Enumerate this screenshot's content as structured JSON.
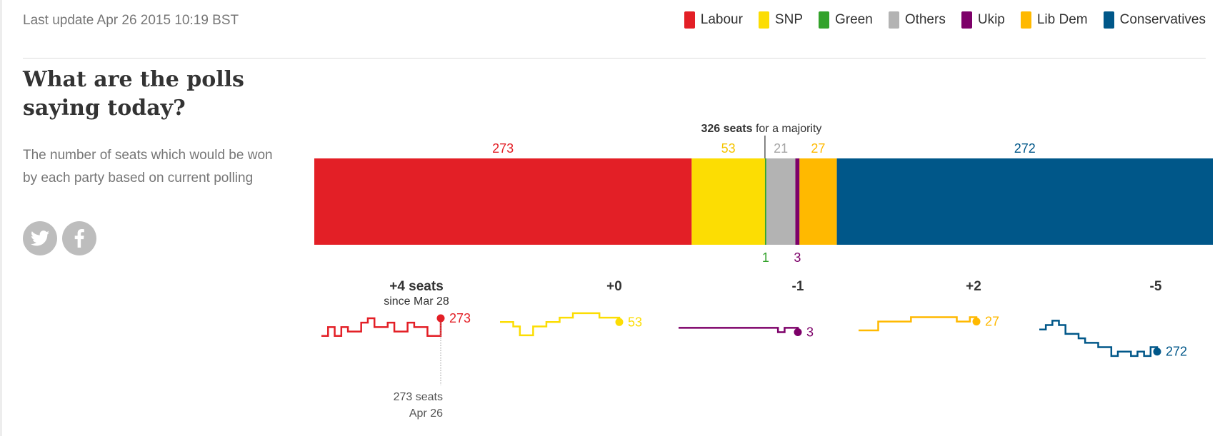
{
  "last_update": "Last update Apr 26 2015 10:19 BST",
  "headline": "What are the polls saying today?",
  "standfirst": "The number of seats which would be won by each party based on current polling",
  "share": {
    "twitter_icon": "twitter-icon",
    "facebook_icon": "facebook-icon"
  },
  "legend": [
    {
      "label": "Labour",
      "color": "#e31f26"
    },
    {
      "label": "SNP",
      "color": "#fcdd03"
    },
    {
      "label": "Green",
      "color": "#33a22b"
    },
    {
      "label": "Others",
      "color": "#b3b3b3"
    },
    {
      "label": "Ukip",
      "color": "#7d0069"
    },
    {
      "label": "Lib Dem",
      "color": "#ffb900"
    },
    {
      "label": "Conservatives",
      "color": "#005789"
    }
  ],
  "chart_data": [
    {
      "type": "bar",
      "stacked": true,
      "orientation": "horizontal",
      "total": 650,
      "majority": {
        "seats": 326,
        "bold_text": "326 seats",
        "text": "for a majority"
      },
      "segments": [
        {
          "party": "Labour",
          "seats": 273,
          "label": "273",
          "color": "#e31f26",
          "label_pos": "above"
        },
        {
          "party": "SNP",
          "seats": 53,
          "label": "53",
          "color": "#fcdd03",
          "label_pos": "above",
          "label_color": "#f5c400"
        },
        {
          "party": "Green",
          "seats": 1,
          "label": "1",
          "color": "#33a22b",
          "label_pos": "below"
        },
        {
          "party": "Others",
          "seats": 21,
          "label": "21",
          "color": "#b3b3b3",
          "label_pos": "above"
        },
        {
          "party": "Ukip",
          "seats": 3,
          "label": "3",
          "color": "#7d0069",
          "label_pos": "below"
        },
        {
          "party": "Lib Dem",
          "seats": 27,
          "label": "27",
          "color": "#ffb900",
          "label_pos": "above"
        },
        {
          "party": "Conservatives",
          "seats": 272,
          "label": "272",
          "color": "#005789",
          "label_pos": "above"
        }
      ]
    },
    {
      "type": "line",
      "description_style": "step sparklines",
      "x_range": [
        "Mar 28",
        "Apr 26"
      ],
      "annotation": {
        "since": "since Mar 28",
        "value_label": "273 seats",
        "date_label": "Apr 26"
      },
      "series": [
        {
          "name": "Labour",
          "change": "+4 seats",
          "final": 273,
          "final_label": "273",
          "color": "#e31f26",
          "values": [
            269,
            271,
            269,
            271,
            270,
            270,
            272,
            273,
            271,
            271,
            272,
            270,
            270,
            272,
            271,
            271,
            269,
            269,
            273
          ]
        },
        {
          "name": "SNP",
          "change": "+0",
          "final": 53,
          "final_label": "53",
          "color": "#fcdd03",
          "values": [
            53,
            53,
            52,
            50,
            50,
            52,
            52,
            53,
            53,
            54,
            54,
            55,
            55,
            55,
            55,
            54,
            54,
            54,
            53
          ]
        },
        {
          "name": "Ukip",
          "change": "-1",
          "final": 3,
          "final_label": "3",
          "color": "#7d0069",
          "values": [
            4,
            4,
            4,
            4,
            4,
            4,
            4,
            4,
            4,
            4,
            4,
            4,
            4,
            4,
            4,
            3,
            4,
            4,
            3
          ]
        },
        {
          "name": "Lib Dem",
          "change": "+2",
          "final": 27,
          "final_label": "27",
          "color": "#ffb900",
          "values": [
            25,
            25,
            25,
            27,
            27,
            27,
            27,
            27,
            28,
            28,
            28,
            28,
            28,
            28,
            28,
            27,
            27,
            28,
            27
          ]
        },
        {
          "name": "Conservatives",
          "change": "-5",
          "final": 272,
          "final_label": "272",
          "color": "#005789",
          "values": [
            277,
            278,
            279,
            278,
            276,
            276,
            275,
            274,
            274,
            273,
            273,
            271,
            272,
            272,
            271,
            272,
            271,
            273,
            272
          ]
        }
      ]
    }
  ]
}
